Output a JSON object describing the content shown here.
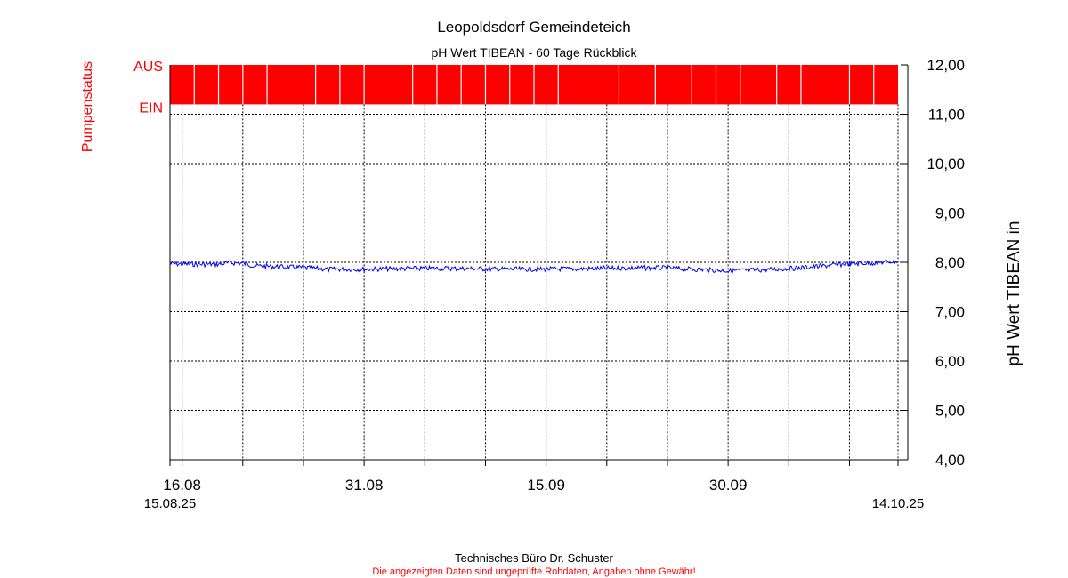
{
  "colors": {
    "title": "#000000",
    "pump_status": "#ff0000",
    "series_line": "#0000ff",
    "axis": "#000000",
    "grid": "#000000",
    "disclaimer": "#ff0000"
  },
  "footer": {
    "company": "Technisches Büro Dr. Schuster",
    "disclaimer": "Die angezeigten Daten sind ungeprüfte Rohdaten, Angaben ohne Gewähr!"
  },
  "chart_data": {
    "type": "line",
    "title": "Leopoldsdorf Gemeindeteich",
    "subtitle": "pH Wert TIBEAN - 60 Tage Rückblick",
    "ylabel": "pH Wert TIBEAN in",
    "y2label": "Pumpenstatus",
    "ylim": [
      4.0,
      12.0
    ],
    "yticks": [
      "4,00",
      "5,00",
      "6,00",
      "7,00",
      "8,00",
      "9,00",
      "10,00",
      "11,00",
      "12,00"
    ],
    "y_tick_values": [
      4,
      5,
      6,
      7,
      8,
      9,
      10,
      11,
      12
    ],
    "xlim": [
      "2025-08-15",
      "2025-10-14"
    ],
    "x_tick_labels": [
      {
        "date": "2025-08-16",
        "label": "16.08"
      },
      {
        "date": "2025-08-31",
        "label": "31.08"
      },
      {
        "date": "2025-09-15",
        "label": "15.09"
      },
      {
        "date": "2025-09-30",
        "label": "30.09"
      }
    ],
    "x_minor_ticks": [
      "2025-08-21",
      "2025-08-26",
      "2025-09-05",
      "2025-09-10",
      "2025-09-20",
      "2025-09-25",
      "2025-10-05",
      "2025-10-10"
    ],
    "start_label": "15.08.25",
    "end_label": "14.10.25",
    "grid": true,
    "grid_style": "dashed",
    "pump_status": {
      "labels": [
        "AUS",
        "EIN"
      ],
      "state": "AUS",
      "switch_days": [
        "2025-08-17",
        "2025-08-19",
        "2025-08-21",
        "2025-08-23",
        "2025-08-27",
        "2025-08-29",
        "2025-08-31",
        "2025-09-04",
        "2025-09-06",
        "2025-09-08",
        "2025-09-10",
        "2025-09-12",
        "2025-09-14",
        "2025-09-16",
        "2025-09-21",
        "2025-09-24",
        "2025-09-27",
        "2025-09-29",
        "2025-10-01",
        "2025-10-04",
        "2025-10-06",
        "2025-10-10",
        "2025-10-12"
      ]
    },
    "series": [
      {
        "values": [
          {
            "x": "2025-08-15",
            "y": 7.97
          },
          {
            "x": "2025-08-17",
            "y": 7.96
          },
          {
            "x": "2025-08-19",
            "y": 7.96
          },
          {
            "x": "2025-08-20",
            "y": 7.99
          },
          {
            "x": "2025-08-21",
            "y": 7.98
          },
          {
            "x": "2025-08-22",
            "y": 7.93
          },
          {
            "x": "2025-08-24",
            "y": 7.91
          },
          {
            "x": "2025-08-26",
            "y": 7.89
          },
          {
            "x": "2025-08-28",
            "y": 7.86
          },
          {
            "x": "2025-08-31",
            "y": 7.86
          },
          {
            "x": "2025-09-03",
            "y": 7.87
          },
          {
            "x": "2025-09-06",
            "y": 7.88
          },
          {
            "x": "2025-09-09",
            "y": 7.87
          },
          {
            "x": "2025-09-12",
            "y": 7.86
          },
          {
            "x": "2025-09-15",
            "y": 7.86
          },
          {
            "x": "2025-09-18",
            "y": 7.87
          },
          {
            "x": "2025-09-21",
            "y": 7.88
          },
          {
            "x": "2025-09-24",
            "y": 7.89
          },
          {
            "x": "2025-09-27",
            "y": 7.86
          },
          {
            "x": "2025-09-30",
            "y": 7.83
          },
          {
            "x": "2025-10-02",
            "y": 7.84
          },
          {
            "x": "2025-10-04",
            "y": 7.86
          },
          {
            "x": "2025-10-06",
            "y": 7.89
          },
          {
            "x": "2025-10-08",
            "y": 7.93
          },
          {
            "x": "2025-10-10",
            "y": 7.97
          },
          {
            "x": "2025-10-12",
            "y": 7.99
          },
          {
            "x": "2025-10-14",
            "y": 8.02
          }
        ]
      }
    ]
  }
}
